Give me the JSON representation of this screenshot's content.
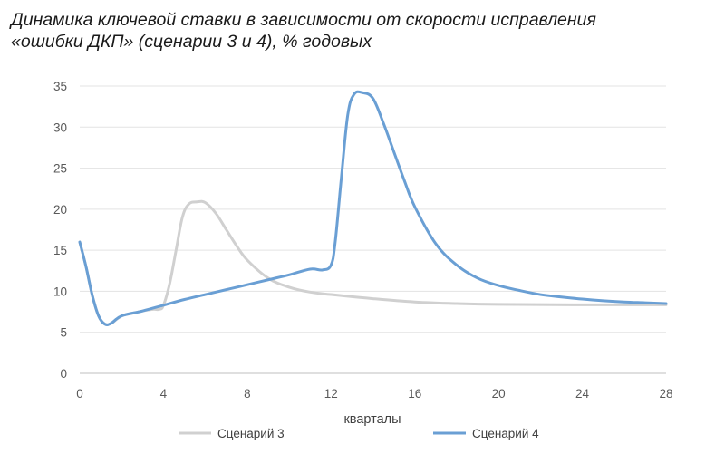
{
  "title_line1": "Динамика ключевой ставки в зависимости от скорости исправления",
  "title_line2": "«ошибки ДКП» (сценарии 3 и 4), % годовых",
  "chart_data": {
    "type": "line",
    "xlabel": "кварталы",
    "ylabel": "",
    "xlim": [
      0,
      28
    ],
    "ylim": [
      0,
      35
    ],
    "xticks": [
      0,
      4,
      8,
      12,
      16,
      20,
      24,
      28
    ],
    "yticks": [
      0,
      5,
      10,
      15,
      20,
      25,
      30,
      35
    ],
    "grid": "horizontal",
    "legend_position": "bottom",
    "series": [
      {
        "name": "Сценарий 3",
        "color": "#d0d0d0",
        "points": [
          [
            0,
            16
          ],
          [
            0.3,
            13
          ],
          [
            0.6,
            9.5
          ],
          [
            0.9,
            7
          ],
          [
            1.2,
            6
          ],
          [
            1.5,
            6.1
          ],
          [
            2,
            7
          ],
          [
            2.5,
            7.3
          ],
          [
            3,
            7.6
          ],
          [
            3.5,
            7.8
          ],
          [
            3.8,
            7.8
          ],
          [
            4,
            8.3
          ],
          [
            4.3,
            11
          ],
          [
            4.6,
            15
          ],
          [
            4.9,
            19
          ],
          [
            5.2,
            20.6
          ],
          [
            5.6,
            20.9
          ],
          [
            6,
            20.8
          ],
          [
            6.5,
            19.5
          ],
          [
            7,
            17.5
          ],
          [
            7.5,
            15.5
          ],
          [
            8,
            13.8
          ],
          [
            9,
            11.6
          ],
          [
            10,
            10.5
          ],
          [
            11,
            9.9
          ],
          [
            12,
            9.6
          ],
          [
            14,
            9.1
          ],
          [
            16,
            8.7
          ],
          [
            18,
            8.5
          ],
          [
            20,
            8.4
          ],
          [
            24,
            8.35
          ],
          [
            28,
            8.35
          ]
        ]
      },
      {
        "name": "Сценарий 4",
        "color": "#6a9fd4",
        "points": [
          [
            0,
            16
          ],
          [
            0.3,
            13
          ],
          [
            0.6,
            9.5
          ],
          [
            0.9,
            7
          ],
          [
            1.2,
            6
          ],
          [
            1.5,
            6.1
          ],
          [
            2,
            7
          ],
          [
            3,
            7.6
          ],
          [
            4,
            8.3
          ],
          [
            5,
            9
          ],
          [
            6,
            9.6
          ],
          [
            7,
            10.2
          ],
          [
            8,
            10.8
          ],
          [
            9,
            11.4
          ],
          [
            10,
            12
          ],
          [
            11,
            12.7
          ],
          [
            11.6,
            12.6
          ],
          [
            12,
            13.2
          ],
          [
            12.2,
            16
          ],
          [
            12.5,
            24
          ],
          [
            12.8,
            31.5
          ],
          [
            13.1,
            34
          ],
          [
            13.5,
            34.2
          ],
          [
            14,
            33.5
          ],
          [
            14.5,
            30.5
          ],
          [
            15,
            27
          ],
          [
            15.5,
            23.5
          ],
          [
            16,
            20.3
          ],
          [
            17,
            15.8
          ],
          [
            18,
            13.2
          ],
          [
            19,
            11.6
          ],
          [
            20,
            10.7
          ],
          [
            21,
            10.1
          ],
          [
            22,
            9.6
          ],
          [
            23,
            9.3
          ],
          [
            24,
            9.05
          ],
          [
            25,
            8.85
          ],
          [
            26,
            8.7
          ],
          [
            27,
            8.6
          ],
          [
            28,
            8.5
          ]
        ]
      }
    ]
  }
}
